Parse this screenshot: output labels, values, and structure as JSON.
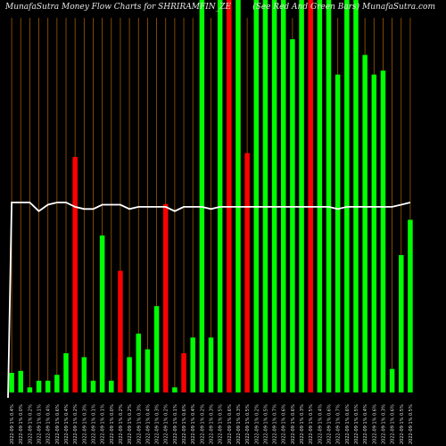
{
  "header": {
    "title_left": "MunafaSutra  Money Flow  Charts for SHRIRAMFIN_ZE",
    "title_right": "(See Red And Green Bars) MunafaSutra.com"
  },
  "chart_data": {
    "type": "bar",
    "title": "MunafaSutra  Money Flow  Charts for SHRIRAMFIN_ZE",
    "ylim": [
      0,
      100
    ],
    "colors": {
      "green": "#00ff00",
      "red": "#ff0000",
      "line": "#ffffff",
      "grid": "#a05a00",
      "background": "#000000"
    },
    "categories": [
      "2022-09 1% 0.4%",
      "2022-09 1% 0.0%",
      "2022-09 1% 0.2%",
      "2022-09 1% 0.1%",
      "2022-09 1% 0.4%",
      "2022-09 1% 0.6%",
      "2022-09 1% 0.4%",
      "2022-09 1% 0.2%",
      "2022-09 1% 0.3%",
      "2022-09 1% 0.1%",
      "2022-09 1% 0.1%",
      "2022-09 1% 0.0%",
      "2022-09 1% 0.2%",
      "2022-09 1% 0.2%",
      "2022-09 1% 0.3%",
      "2022-09 1% 0.4%",
      "2022-09 1% 0.3%",
      "2022-09 1% 0.2%",
      "2022-09 1% 0.1%",
      "2022-09 1% 0.6%",
      "2022-09 1% 0.4%",
      "2022-09 1% 0.2%",
      "2022-09 1% 0.3%",
      "2022-09 1% 0.5%",
      "2022-09 1% 0.6%",
      "2022-09 1% 0.3%",
      "2022-09 1% 0.5%",
      "2022-09 1% 0.2%",
      "2022-09 1% 0.5%",
      "2022-09 1% 0.7%",
      "2022-09 1% 0.6%",
      "2022-09 1% 0.6%",
      "2022-09 1% 0.3%",
      "2022-09 1% 0.5%",
      "2022-09 1% 0.4%",
      "2022-09 1% 0.6%",
      "2022-09 1% 0.7%",
      "2022-09 1% 0.6%",
      "2022-09 1% 0.5%",
      "2022-09 1% 0.4%",
      "2022-09 1% 0.6%",
      "2022-09 1% 0.3%",
      "2022-09 1% 0.6%",
      "2022-09 1% 0.5%",
      "2022-09 1% 0.5%"
    ],
    "values": [
      5,
      5.5,
      1.3,
      3,
      3,
      4.5,
      10,
      60,
      9,
      3,
      40,
      3,
      31,
      9,
      15,
      11,
      22,
      48,
      1.3,
      10,
      14,
      100,
      14,
      100,
      100,
      100,
      61,
      100,
      100,
      100,
      100,
      90,
      100,
      100,
      100,
      100,
      81,
      100,
      100,
      86,
      81,
      82,
      6,
      35,
      44
    ],
    "bar_colors": [
      "green",
      "green",
      "green",
      "green",
      "green",
      "green",
      "green",
      "red",
      "green",
      "green",
      "green",
      "green",
      "red",
      "green",
      "green",
      "green",
      "green",
      "red",
      "green",
      "red",
      "green",
      "green",
      "green",
      "green",
      "red",
      "green",
      "red",
      "green",
      "green",
      "green",
      "green",
      "green",
      "green",
      "red",
      "green",
      "green",
      "green",
      "green",
      "green",
      "green",
      "green",
      "green",
      "green",
      "green",
      "green"
    ],
    "line_values": [
      88,
      88,
      88,
      84,
      87,
      88,
      88,
      86,
      85,
      85,
      87,
      87,
      87,
      85,
      86,
      86,
      86,
      86,
      84,
      86,
      86,
      86,
      85,
      86,
      86,
      86,
      86,
      86,
      86,
      86,
      86,
      86,
      86,
      86,
      86,
      86,
      85,
      86,
      86,
      86,
      86,
      86,
      86,
      87,
      88
    ],
    "grid": true
  }
}
